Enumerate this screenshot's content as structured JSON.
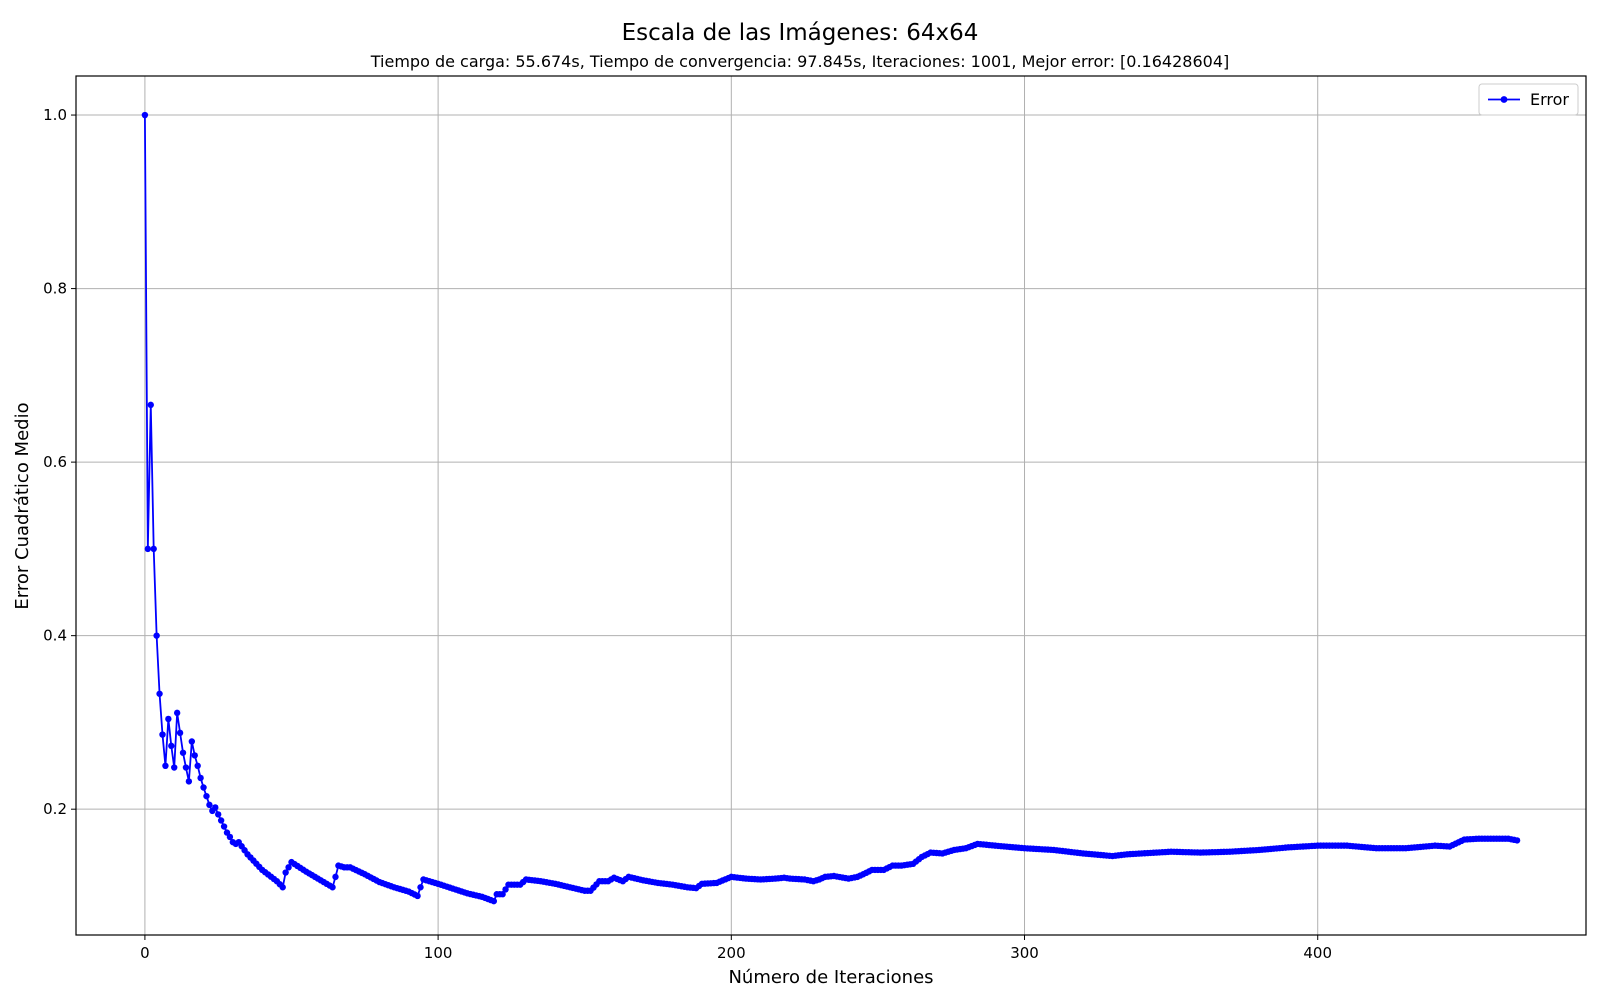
{
  "chart_data": {
    "type": "line",
    "title": "Escala de las Imágenes: 64x64",
    "subtitle": "Tiempo de carga: 55.674s, Tiempo de convergencia: 97.845s, Iteraciones: 1001, Mejor error: [0.16428604]",
    "xlabel": "Número de Iteraciones",
    "ylabel": "Error Cuadrático Medio",
    "xlim": [
      -23.5,
      491.5
    ],
    "ylim": [
      0.055,
      1.045
    ],
    "xticks": [
      0,
      100,
      200,
      300,
      400
    ],
    "yticks": [
      0.2,
      0.4,
      0.6,
      0.8,
      1.0
    ],
    "xtick_labels": [
      "0",
      "100",
      "200",
      "300",
      "400"
    ],
    "ytick_labels": [
      "0.2",
      "0.4",
      "0.6",
      "0.8",
      "1.0"
    ],
    "grid": true,
    "legend_position": "top-right",
    "series": [
      {
        "name": "Error",
        "color": "#0000ff",
        "marker": "circle",
        "anchors": [
          [
            0,
            1.0
          ],
          [
            1,
            0.5
          ],
          [
            2,
            0.666
          ],
          [
            3,
            0.5
          ],
          [
            4,
            0.4
          ],
          [
            5,
            0.333
          ],
          [
            6,
            0.286
          ],
          [
            7,
            0.25
          ],
          [
            8,
            0.304
          ],
          [
            9,
            0.273
          ],
          [
            10,
            0.248
          ],
          [
            11,
            0.311
          ],
          [
            12,
            0.288
          ],
          [
            13,
            0.265
          ],
          [
            14,
            0.248
          ],
          [
            15,
            0.232
          ],
          [
            16,
            0.278
          ],
          [
            17,
            0.262
          ],
          [
            18,
            0.25
          ],
          [
            19,
            0.236
          ],
          [
            20,
            0.225
          ],
          [
            21,
            0.215
          ],
          [
            22,
            0.205
          ],
          [
            23,
            0.198
          ],
          [
            24,
            0.202
          ],
          [
            25,
            0.194
          ],
          [
            26,
            0.187
          ],
          [
            27,
            0.18
          ],
          [
            28,
            0.173
          ],
          [
            29,
            0.168
          ],
          [
            30,
            0.162
          ],
          [
            31,
            0.16
          ],
          [
            32,
            0.162
          ],
          [
            35,
            0.148
          ],
          [
            40,
            0.13
          ],
          [
            45,
            0.117
          ],
          [
            47,
            0.11
          ],
          [
            48,
            0.127
          ],
          [
            49,
            0.133
          ],
          [
            50,
            0.139
          ],
          [
            55,
            0.128
          ],
          [
            60,
            0.118
          ],
          [
            64,
            0.11
          ],
          [
            65,
            0.122
          ],
          [
            66,
            0.135
          ],
          [
            68,
            0.133
          ],
          [
            70,
            0.133
          ],
          [
            75,
            0.125
          ],
          [
            80,
            0.116
          ],
          [
            85,
            0.11
          ],
          [
            90,
            0.105
          ],
          [
            93,
            0.1
          ],
          [
            94,
            0.11
          ],
          [
            95,
            0.119
          ],
          [
            100,
            0.114
          ],
          [
            110,
            0.103
          ],
          [
            115,
            0.099
          ],
          [
            119,
            0.094
          ],
          [
            120,
            0.102
          ],
          [
            122,
            0.102
          ],
          [
            124,
            0.113
          ],
          [
            128,
            0.113
          ],
          [
            130,
            0.119
          ],
          [
            135,
            0.117
          ],
          [
            140,
            0.114
          ],
          [
            145,
            0.11
          ],
          [
            150,
            0.106
          ],
          [
            152,
            0.106
          ],
          [
            155,
            0.117
          ],
          [
            158,
            0.117
          ],
          [
            160,
            0.121
          ],
          [
            163,
            0.117
          ],
          [
            165,
            0.122
          ],
          [
            170,
            0.118
          ],
          [
            175,
            0.115
          ],
          [
            180,
            0.113
          ],
          [
            185,
            0.11
          ],
          [
            188,
            0.109
          ],
          [
            190,
            0.114
          ],
          [
            195,
            0.115
          ],
          [
            200,
            0.122
          ],
          [
            205,
            0.12
          ],
          [
            210,
            0.119
          ],
          [
            215,
            0.12
          ],
          [
            218,
            0.121
          ],
          [
            220,
            0.12
          ],
          [
            225,
            0.119
          ],
          [
            228,
            0.117
          ],
          [
            230,
            0.119
          ],
          [
            232,
            0.122
          ],
          [
            235,
            0.123
          ],
          [
            240,
            0.12
          ],
          [
            243,
            0.122
          ],
          [
            245,
            0.125
          ],
          [
            248,
            0.13
          ],
          [
            252,
            0.13
          ],
          [
            255,
            0.135
          ],
          [
            258,
            0.135
          ],
          [
            262,
            0.137
          ],
          [
            265,
            0.145
          ],
          [
            268,
            0.15
          ],
          [
            272,
            0.149
          ],
          [
            276,
            0.153
          ],
          [
            280,
            0.155
          ],
          [
            284,
            0.16
          ],
          [
            290,
            0.158
          ],
          [
            300,
            0.155
          ],
          [
            310,
            0.153
          ],
          [
            320,
            0.149
          ],
          [
            330,
            0.146
          ],
          [
            335,
            0.148
          ],
          [
            340,
            0.149
          ],
          [
            350,
            0.151
          ],
          [
            360,
            0.15
          ],
          [
            370,
            0.151
          ],
          [
            380,
            0.153
          ],
          [
            390,
            0.156
          ],
          [
            400,
            0.158
          ],
          [
            410,
            0.158
          ],
          [
            420,
            0.155
          ],
          [
            430,
            0.155
          ],
          [
            440,
            0.158
          ],
          [
            445,
            0.157
          ],
          [
            450,
            0.165
          ],
          [
            455,
            0.166
          ],
          [
            460,
            0.166
          ],
          [
            465,
            0.166
          ],
          [
            468,
            0.164
          ]
        ]
      }
    ]
  }
}
